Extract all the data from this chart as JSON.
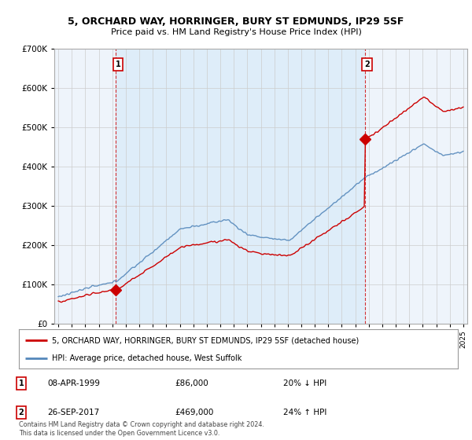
{
  "title": "5, ORCHARD WAY, HORRINGER, BURY ST EDMUNDS, IP29 5SF",
  "subtitle": "Price paid vs. HM Land Registry's House Price Index (HPI)",
  "red_label": "5, ORCHARD WAY, HORRINGER, BURY ST EDMUNDS, IP29 5SF (detached house)",
  "blue_label": "HPI: Average price, detached house, West Suffolk",
  "sale1_date": "08-APR-1999",
  "sale1_price": 86000,
  "sale1_hpi": "20% ↓ HPI",
  "sale2_date": "26-SEP-2017",
  "sale2_price": 469000,
  "sale2_hpi": "24% ↑ HPI",
  "footer": "Contains HM Land Registry data © Crown copyright and database right 2024.\nThis data is licensed under the Open Government Licence v3.0.",
  "ylim": [
    0,
    700000
  ],
  "yticks": [
    0,
    100000,
    200000,
    300000,
    400000,
    500000,
    600000,
    700000
  ],
  "red_color": "#cc0000",
  "blue_color": "#5588bb",
  "shade_color": "#ddeeff",
  "vline_color": "#cc0000",
  "bg_color": "#ffffff",
  "chart_bg": "#eef4fb",
  "grid_color": "#cccccc",
  "t1": 1999.27,
  "t2": 2017.73,
  "xlim_left": 1994.7,
  "xlim_right": 2025.3
}
